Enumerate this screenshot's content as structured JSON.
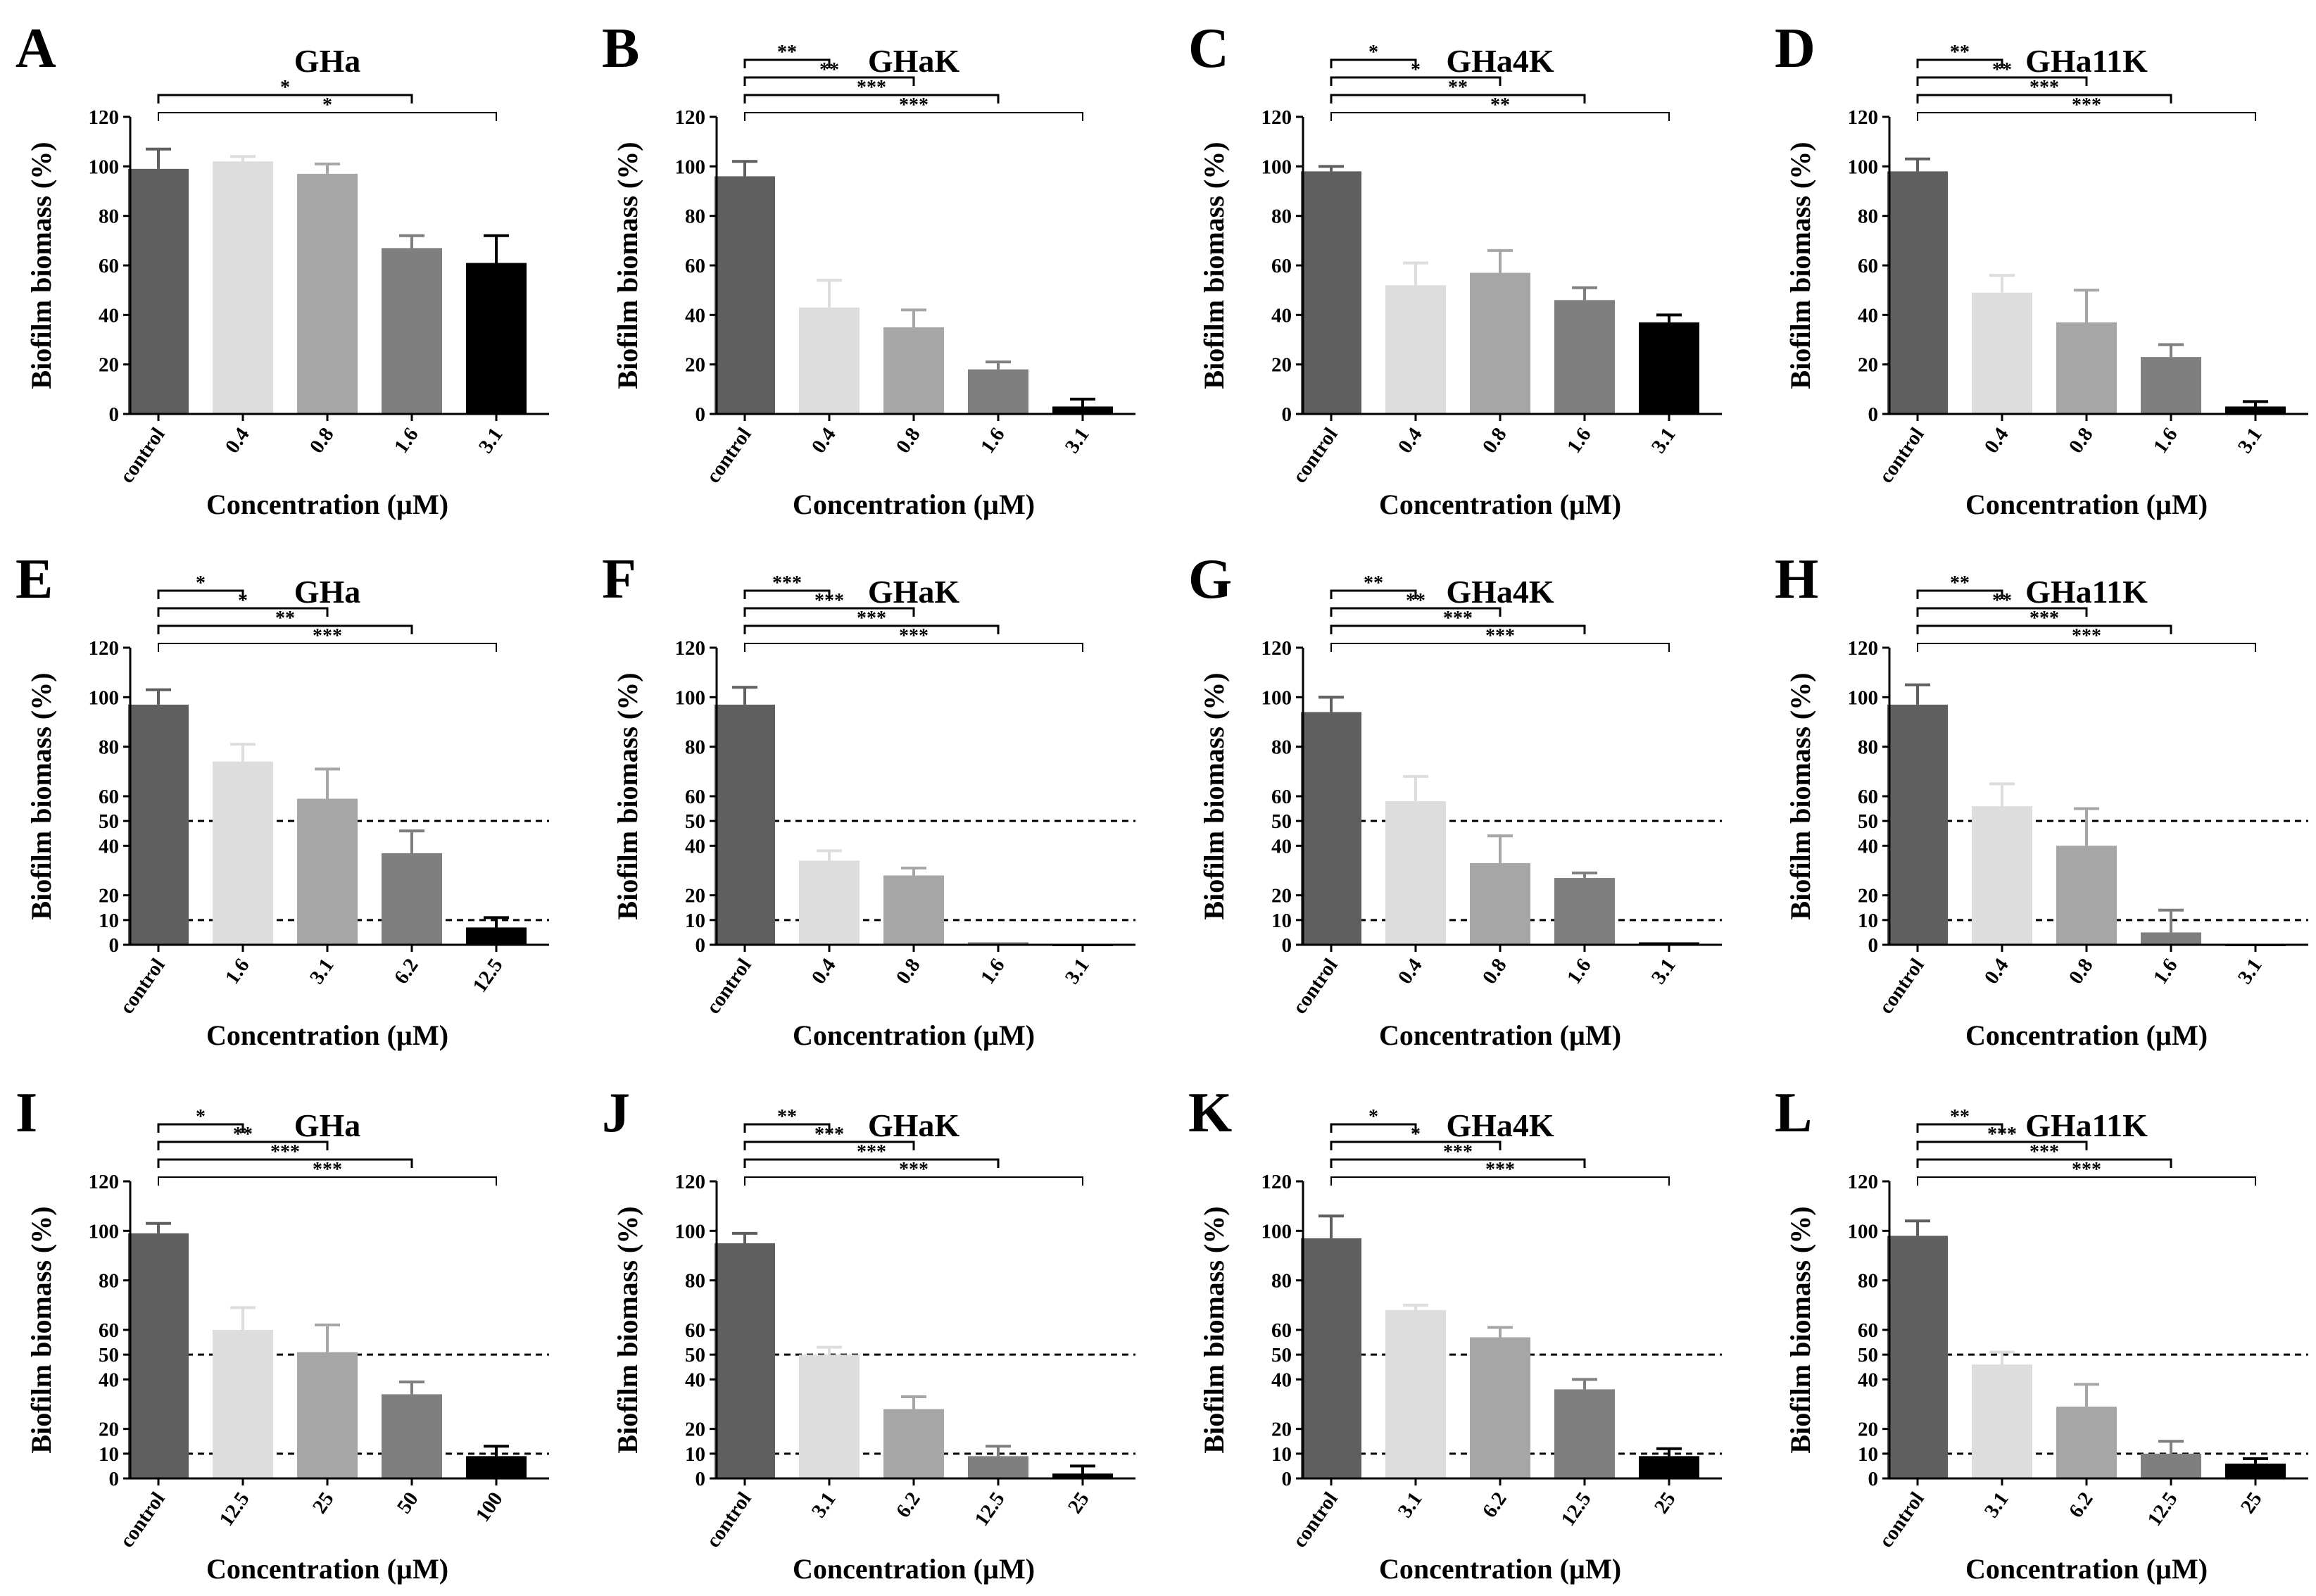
{
  "figure": {
    "ylabel": "Biofilm biomass (%)",
    "xlabel": "Concentration (µM)"
  },
  "chart_data": [
    {
      "type": "bar",
      "panel": "A",
      "title": "GHa",
      "categories": [
        "control",
        "0.4",
        "0.8",
        "1.6",
        "3.1"
      ],
      "values": [
        99,
        102,
        97,
        67,
        61
      ],
      "errors": [
        8,
        2,
        4,
        5,
        11
      ],
      "ylim": [
        0,
        120
      ],
      "yticks": [
        0,
        20,
        40,
        60,
        80,
        100,
        120
      ],
      "ref_lines": [],
      "colors": [
        "#5f5f5f",
        "#dddddd",
        "#a6a6a6",
        "#7f7f7f",
        "#000000"
      ],
      "sig": [
        {
          "to": 3,
          "label": "*"
        },
        {
          "to": 4,
          "label": "*"
        }
      ]
    },
    {
      "type": "bar",
      "panel": "B",
      "title": "GHaK",
      "categories": [
        "control",
        "0.4",
        "0.8",
        "1.6",
        "3.1"
      ],
      "values": [
        96,
        43,
        35,
        18,
        3
      ],
      "errors": [
        6,
        11,
        7,
        3,
        3
      ],
      "ylim": [
        0,
        120
      ],
      "yticks": [
        0,
        20,
        40,
        60,
        80,
        100,
        120
      ],
      "ref_lines": [],
      "colors": [
        "#5f5f5f",
        "#dddddd",
        "#a6a6a6",
        "#7f7f7f",
        "#000000"
      ],
      "sig": [
        {
          "to": 1,
          "label": "**"
        },
        {
          "to": 2,
          "label": "**"
        },
        {
          "to": 3,
          "label": "***"
        },
        {
          "to": 4,
          "label": "***"
        }
      ]
    },
    {
      "type": "bar",
      "panel": "C",
      "title": "GHa4K",
      "categories": [
        "control",
        "0.4",
        "0.8",
        "1.6",
        "3.1"
      ],
      "values": [
        98,
        52,
        57,
        46,
        37
      ],
      "errors": [
        2,
        9,
        9,
        5,
        3
      ],
      "ylim": [
        0,
        120
      ],
      "yticks": [
        0,
        20,
        40,
        60,
        80,
        100,
        120
      ],
      "ref_lines": [],
      "colors": [
        "#5f5f5f",
        "#dddddd",
        "#a6a6a6",
        "#7f7f7f",
        "#000000"
      ],
      "sig": [
        {
          "to": 1,
          "label": "*"
        },
        {
          "to": 2,
          "label": "*"
        },
        {
          "to": 3,
          "label": "**"
        },
        {
          "to": 4,
          "label": "**"
        }
      ]
    },
    {
      "type": "bar",
      "panel": "D",
      "title": "GHa11K",
      "categories": [
        "control",
        "0.4",
        "0.8",
        "1.6",
        "3.1"
      ],
      "values": [
        98,
        49,
        37,
        23,
        3
      ],
      "errors": [
        5,
        7,
        13,
        5,
        2
      ],
      "ylim": [
        0,
        120
      ],
      "yticks": [
        0,
        20,
        40,
        60,
        80,
        100,
        120
      ],
      "ref_lines": [],
      "colors": [
        "#5f5f5f",
        "#dddddd",
        "#a6a6a6",
        "#7f7f7f",
        "#000000"
      ],
      "sig": [
        {
          "to": 1,
          "label": "**"
        },
        {
          "to": 2,
          "label": "**"
        },
        {
          "to": 3,
          "label": "***"
        },
        {
          "to": 4,
          "label": "***"
        }
      ]
    },
    {
      "type": "bar",
      "panel": "E",
      "title": "GHa",
      "categories": [
        "control",
        "1.6",
        "3.1",
        "6.2",
        "12.5"
      ],
      "values": [
        97,
        74,
        59,
        37,
        7
      ],
      "errors": [
        6,
        7,
        12,
        9,
        4
      ],
      "ylim": [
        0,
        120
      ],
      "yticks": [
        0,
        10,
        20,
        40,
        50,
        60,
        80,
        100,
        120
      ],
      "ref_lines": [
        50,
        10
      ],
      "colors": [
        "#5f5f5f",
        "#dddddd",
        "#a6a6a6",
        "#7f7f7f",
        "#000000"
      ],
      "sig": [
        {
          "to": 1,
          "label": "*"
        },
        {
          "to": 2,
          "label": "*"
        },
        {
          "to": 3,
          "label": "**"
        },
        {
          "to": 4,
          "label": "***"
        }
      ]
    },
    {
      "type": "bar",
      "panel": "F",
      "title": "GHaK",
      "categories": [
        "control",
        "0.4",
        "0.8",
        "1.6",
        "3.1"
      ],
      "values": [
        97,
        34,
        28,
        1,
        0
      ],
      "errors": [
        7,
        4,
        3,
        0,
        0
      ],
      "ylim": [
        0,
        120
      ],
      "yticks": [
        0,
        10,
        20,
        40,
        50,
        60,
        80,
        100,
        120
      ],
      "ref_lines": [
        50,
        10
      ],
      "colors": [
        "#5f5f5f",
        "#dddddd",
        "#a6a6a6",
        "#7f7f7f",
        "#000000"
      ],
      "sig": [
        {
          "to": 1,
          "label": "***"
        },
        {
          "to": 2,
          "label": "***"
        },
        {
          "to": 3,
          "label": "***"
        },
        {
          "to": 4,
          "label": "***"
        }
      ]
    },
    {
      "type": "bar",
      "panel": "G",
      "title": "GHa4K",
      "categories": [
        "control",
        "0.4",
        "0.8",
        "1.6",
        "3.1"
      ],
      "values": [
        94,
        58,
        33,
        27,
        1
      ],
      "errors": [
        6,
        10,
        11,
        2,
        0
      ],
      "ylim": [
        0,
        120
      ],
      "yticks": [
        0,
        10,
        20,
        40,
        50,
        60,
        80,
        100,
        120
      ],
      "ref_lines": [
        50,
        10
      ],
      "colors": [
        "#5f5f5f",
        "#dddddd",
        "#a6a6a6",
        "#7f7f7f",
        "#000000"
      ],
      "sig": [
        {
          "to": 1,
          "label": "**"
        },
        {
          "to": 2,
          "label": "**"
        },
        {
          "to": 3,
          "label": "***"
        },
        {
          "to": 4,
          "label": "***"
        }
      ]
    },
    {
      "type": "bar",
      "panel": "H",
      "title": "GHa11K",
      "categories": [
        "control",
        "0.4",
        "0.8",
        "1.6",
        "3.1"
      ],
      "values": [
        97,
        56,
        40,
        5,
        0
      ],
      "errors": [
        8,
        9,
        15,
        9,
        0
      ],
      "ylim": [
        0,
        120
      ],
      "yticks": [
        0,
        10,
        20,
        40,
        50,
        60,
        80,
        100,
        120
      ],
      "ref_lines": [
        50,
        10
      ],
      "colors": [
        "#5f5f5f",
        "#dddddd",
        "#a6a6a6",
        "#7f7f7f",
        "#000000"
      ],
      "sig": [
        {
          "to": 1,
          "label": "**"
        },
        {
          "to": 2,
          "label": "**"
        },
        {
          "to": 3,
          "label": "***"
        },
        {
          "to": 4,
          "label": "***"
        }
      ]
    },
    {
      "type": "bar",
      "panel": "I",
      "title": "GHa",
      "categories": [
        "control",
        "12.5",
        "25",
        "50",
        "100"
      ],
      "values": [
        99,
        60,
        51,
        34,
        9
      ],
      "errors": [
        4,
        9,
        11,
        5,
        4
      ],
      "ylim": [
        0,
        120
      ],
      "yticks": [
        0,
        10,
        20,
        40,
        50,
        60,
        80,
        100,
        120
      ],
      "ref_lines": [
        50,
        10
      ],
      "colors": [
        "#5f5f5f",
        "#dddddd",
        "#a6a6a6",
        "#7f7f7f",
        "#000000"
      ],
      "sig": [
        {
          "to": 1,
          "label": "*"
        },
        {
          "to": 2,
          "label": "**"
        },
        {
          "to": 3,
          "label": "***"
        },
        {
          "to": 4,
          "label": "***"
        }
      ]
    },
    {
      "type": "bar",
      "panel": "J",
      "title": "GHaK",
      "categories": [
        "control",
        "3.1",
        "6.2",
        "12.5",
        "25"
      ],
      "values": [
        95,
        50,
        28,
        9,
        2
      ],
      "errors": [
        4,
        3,
        5,
        4,
        3
      ],
      "ylim": [
        0,
        120
      ],
      "yticks": [
        0,
        10,
        20,
        40,
        50,
        60,
        80,
        100,
        120
      ],
      "ref_lines": [
        50,
        10
      ],
      "colors": [
        "#5f5f5f",
        "#dddddd",
        "#a6a6a6",
        "#7f7f7f",
        "#000000"
      ],
      "sig": [
        {
          "to": 1,
          "label": "**"
        },
        {
          "to": 2,
          "label": "***"
        },
        {
          "to": 3,
          "label": "***"
        },
        {
          "to": 4,
          "label": "***"
        }
      ]
    },
    {
      "type": "bar",
      "panel": "K",
      "title": "GHa4K",
      "categories": [
        "control",
        "3.1",
        "6.2",
        "12.5",
        "25"
      ],
      "values": [
        97,
        68,
        57,
        36,
        9
      ],
      "errors": [
        9,
        2,
        4,
        4,
        3
      ],
      "ylim": [
        0,
        120
      ],
      "yticks": [
        0,
        10,
        20,
        40,
        50,
        60,
        80,
        100,
        120
      ],
      "ref_lines": [
        50,
        10
      ],
      "colors": [
        "#5f5f5f",
        "#dddddd",
        "#a6a6a6",
        "#7f7f7f",
        "#000000"
      ],
      "sig": [
        {
          "to": 1,
          "label": "*"
        },
        {
          "to": 2,
          "label": "*"
        },
        {
          "to": 3,
          "label": "***"
        },
        {
          "to": 4,
          "label": "***"
        }
      ]
    },
    {
      "type": "bar",
      "panel": "L",
      "title": "GHa11K",
      "categories": [
        "control",
        "3.1",
        "6.2",
        "12.5",
        "25"
      ],
      "values": [
        98,
        46,
        29,
        10,
        6
      ],
      "errors": [
        6,
        5,
        9,
        5,
        2
      ],
      "ylim": [
        0,
        120
      ],
      "yticks": [
        0,
        10,
        20,
        40,
        50,
        60,
        80,
        100,
        120
      ],
      "ref_lines": [
        50,
        10
      ],
      "colors": [
        "#5f5f5f",
        "#dddddd",
        "#a6a6a6",
        "#7f7f7f",
        "#000000"
      ],
      "sig": [
        {
          "to": 1,
          "label": "**"
        },
        {
          "to": 2,
          "label": "***"
        },
        {
          "to": 3,
          "label": "***"
        },
        {
          "to": 4,
          "label": "***"
        }
      ]
    }
  ]
}
